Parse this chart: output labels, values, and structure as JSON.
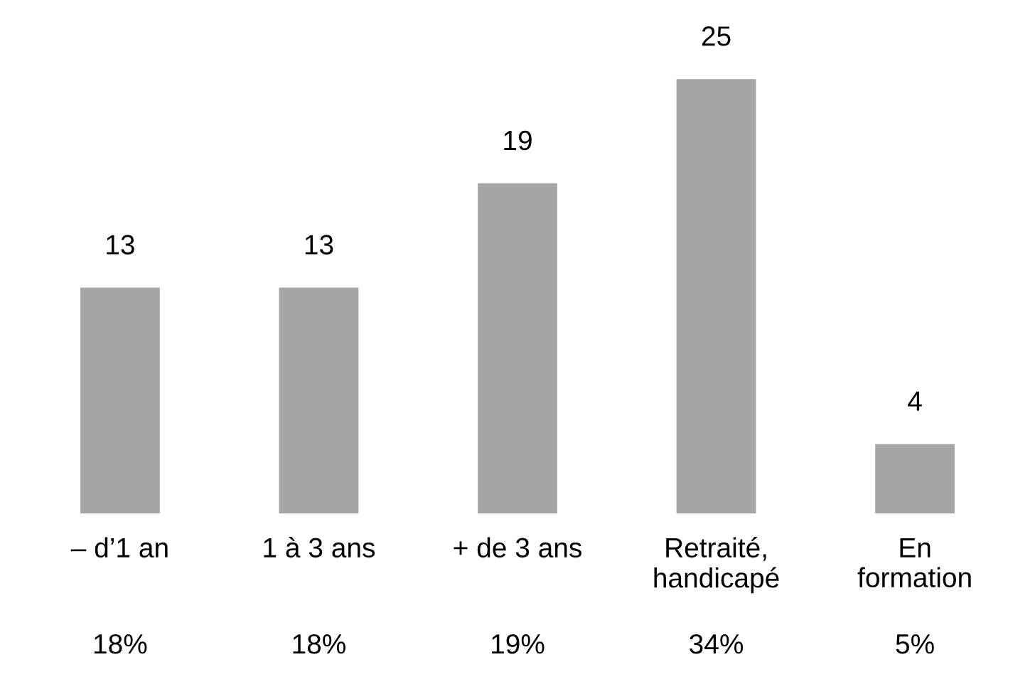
{
  "chart_data": {
    "type": "bar",
    "categories": [
      "– d’1 an",
      "1 à 3 ans",
      "+ de 3 ans",
      "Retraité,\nhandicapé",
      "En\nformation"
    ],
    "values": [
      13,
      13,
      19,
      25,
      4
    ],
    "color": "#a6a6a6",
    "data_labels": true,
    "annotations": [
      "18%",
      "18%",
      "19%",
      "34%",
      "5%"
    ]
  }
}
